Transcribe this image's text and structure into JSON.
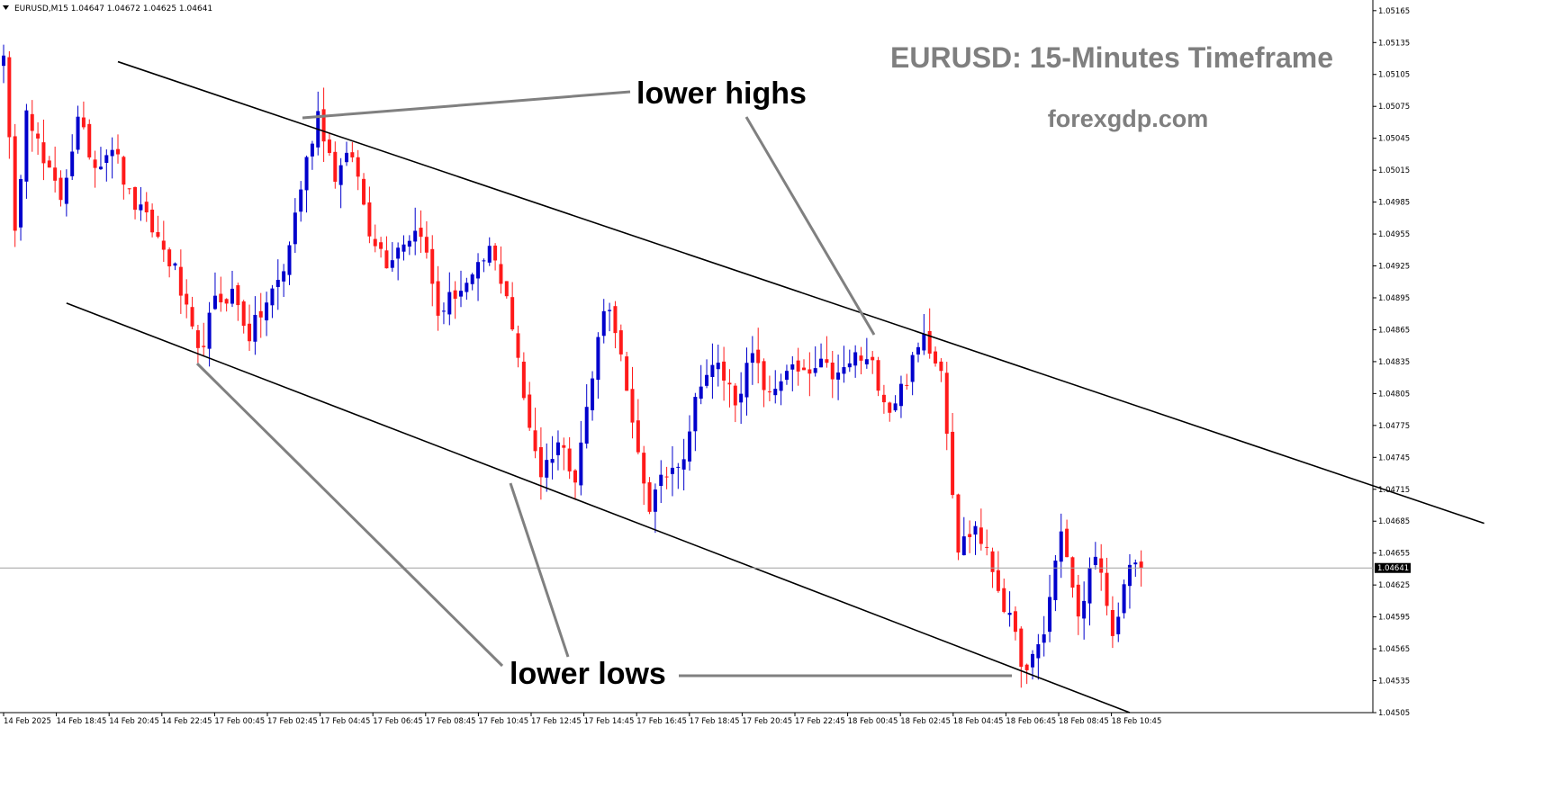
{
  "header": {
    "symbol_info": "EURUSD,M15  1.04647 1.04672 1.04625 1.04641",
    "menu_icon": "triangle-down-icon"
  },
  "chart_data": {
    "type": "candlestick",
    "title": "EURUSD: 15-Minutes Timeframe",
    "subtitle": "forexgdp.com",
    "symbol": "EURUSD",
    "timeframe": "M15",
    "ohlc_header": {
      "open": 1.04647,
      "high": 1.04672,
      "low": 1.04625,
      "close": 1.04641
    },
    "current_price": 1.04641,
    "current_price_label": "1.04641",
    "ylim": [
      1.04505,
      1.05175
    ],
    "y_ticks": [
      "1.05165",
      "1.05135",
      "1.05105",
      "1.05075",
      "1.05045",
      "1.05015",
      "1.04985",
      "1.04955",
      "1.04925",
      "1.04895",
      "1.04865",
      "1.04835",
      "1.04805",
      "1.04775",
      "1.04745",
      "1.04715",
      "1.04685",
      "1.04655",
      "1.04625",
      "1.04595",
      "1.04565",
      "1.04535",
      "1.04505"
    ],
    "x_ticks": [
      "14 Feb 2025",
      "14 Feb 18:45",
      "14 Feb 20:45",
      "14 Feb 22:45",
      "17 Feb 00:45",
      "17 Feb 02:45",
      "17 Feb 04:45",
      "17 Feb 06:45",
      "17 Feb 08:45",
      "17 Feb 10:45",
      "17 Feb 12:45",
      "17 Feb 14:45",
      "17 Feb 16:45",
      "17 Feb 18:45",
      "17 Feb 20:45",
      "17 Feb 22:45",
      "18 Feb 00:45",
      "18 Feb 02:45",
      "18 Feb 04:45",
      "18 Feb 06:45",
      "18 Feb 08:45",
      "18 Feb 10:45"
    ],
    "colors": {
      "bull": "#0000cc",
      "bear": "#ff1a1a",
      "trendline": "#000000",
      "pointer": "#808080",
      "price_line": "#a0a0a0"
    },
    "candle_anchors": [
      [
        0,
        1.0513
      ],
      [
        2,
        1.0495
      ],
      [
        4,
        1.0508
      ],
      [
        7,
        1.0502
      ],
      [
        10,
        1.0499
      ],
      [
        13,
        1.0506
      ],
      [
        16,
        1.0502
      ],
      [
        19,
        1.0504
      ],
      [
        22,
        1.0499
      ],
      [
        26,
        1.0496
      ],
      [
        30,
        1.0492
      ],
      [
        34,
        1.0484
      ],
      [
        37,
        1.0489
      ],
      [
        40,
        1.049
      ],
      [
        43,
        1.0486
      ],
      [
        46,
        1.0489
      ],
      [
        49,
        1.0492
      ],
      [
        52,
        1.05
      ],
      [
        55,
        1.0507
      ],
      [
        58,
        1.0501
      ],
      [
        61,
        1.0503
      ],
      [
        64,
        1.0496
      ],
      [
        67,
        1.0493
      ],
      [
        70,
        1.0495
      ],
      [
        73,
        1.0496
      ],
      [
        76,
        1.0488
      ],
      [
        79,
        1.049
      ],
      [
        82,
        1.0491
      ],
      [
        85,
        1.0494
      ],
      [
        88,
        1.049
      ],
      [
        91,
        1.048
      ],
      [
        94,
        1.0473
      ],
      [
        97,
        1.0476
      ],
      [
        100,
        1.0473
      ],
      [
        103,
        1.0482
      ],
      [
        105,
        1.0489
      ],
      [
        107,
        1.0487
      ],
      [
        110,
        1.0477
      ],
      [
        113,
        1.047
      ],
      [
        116,
        1.0473
      ],
      [
        119,
        1.0475
      ],
      [
        122,
        1.0482
      ],
      [
        125,
        1.0483
      ],
      [
        128,
        1.048
      ],
      [
        131,
        1.0484
      ],
      [
        134,
        1.048
      ],
      [
        137,
        1.0483
      ],
      [
        140,
        1.0482
      ],
      [
        143,
        1.0483
      ],
      [
        146,
        1.0482
      ],
      [
        149,
        1.0484
      ],
      [
        152,
        1.0483
      ],
      [
        155,
        1.0479
      ],
      [
        158,
        1.0482
      ],
      [
        161,
        1.0486
      ],
      [
        164,
        1.0483
      ],
      [
        167,
        1.0466
      ],
      [
        170,
        1.0468
      ],
      [
        173,
        1.0464
      ],
      [
        176,
        1.0459
      ],
      [
        179,
        1.0454
      ],
      [
        182,
        1.0458
      ],
      [
        185,
        1.0468
      ],
      [
        188,
        1.0459
      ],
      [
        191,
        1.0466
      ],
      [
        194,
        1.0457
      ],
      [
        197,
        1.0465
      ],
      [
        199,
        1.04641
      ]
    ],
    "trendlines": [
      {
        "name": "upper-channel-line",
        "points": [
          [
            20,
            1.05117
          ],
          [
            259,
            1.04683
          ]
        ]
      },
      {
        "name": "lower-channel-line",
        "points": [
          [
            11,
            1.0489
          ],
          [
            197,
            1.04505
          ]
        ]
      }
    ],
    "annotations": [
      {
        "name": "lower-highs",
        "text": "lower highs"
      },
      {
        "name": "lower-lows",
        "text": "lower lows"
      }
    ]
  }
}
